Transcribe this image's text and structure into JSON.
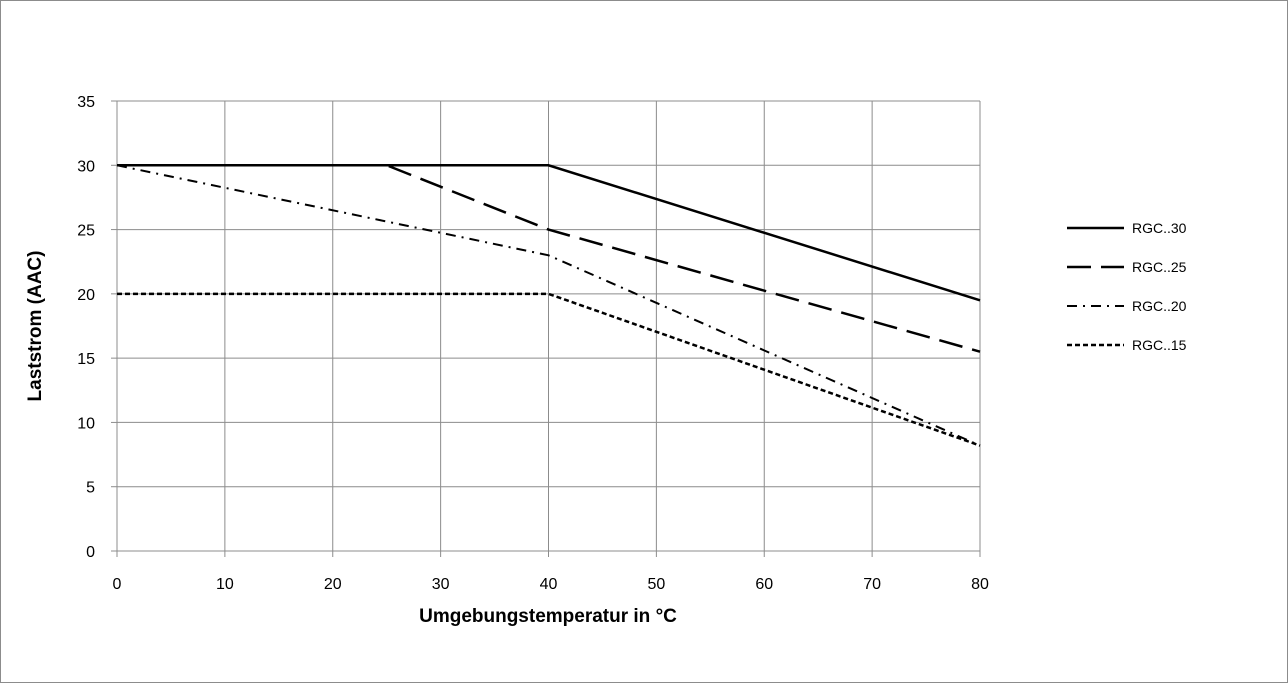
{
  "chart_data": {
    "type": "line",
    "title": "",
    "xlabel": "Umgebungstemperatur in °C",
    "ylabel": "Laststrom  (AAC)",
    "xlim": [
      0,
      80
    ],
    "ylim": [
      0,
      35
    ],
    "xticks": [
      0,
      10,
      20,
      30,
      40,
      50,
      60,
      70,
      80
    ],
    "yticks": [
      0,
      5,
      10,
      15,
      20,
      25,
      30,
      35
    ],
    "grid": true,
    "legend_position": "right",
    "series": [
      {
        "name": "RGC..30",
        "style": "solid",
        "color": "#000000",
        "x": [
          0,
          40,
          80
        ],
        "y": [
          30,
          30,
          19.5
        ]
      },
      {
        "name": "RGC..25",
        "style": "long-dash",
        "color": "#000000",
        "x": [
          0,
          25,
          40,
          80
        ],
        "y": [
          30,
          30,
          25,
          15.5
        ]
      },
      {
        "name": "RGC..20",
        "style": "dash-dot",
        "color": "#000000",
        "x": [
          0,
          40,
          80
        ],
        "y": [
          30,
          23,
          8.2
        ]
      },
      {
        "name": "RGC..15",
        "style": "short-dash",
        "color": "#000000",
        "x": [
          0,
          40,
          80
        ],
        "y": [
          20,
          20,
          8.2
        ]
      }
    ]
  }
}
